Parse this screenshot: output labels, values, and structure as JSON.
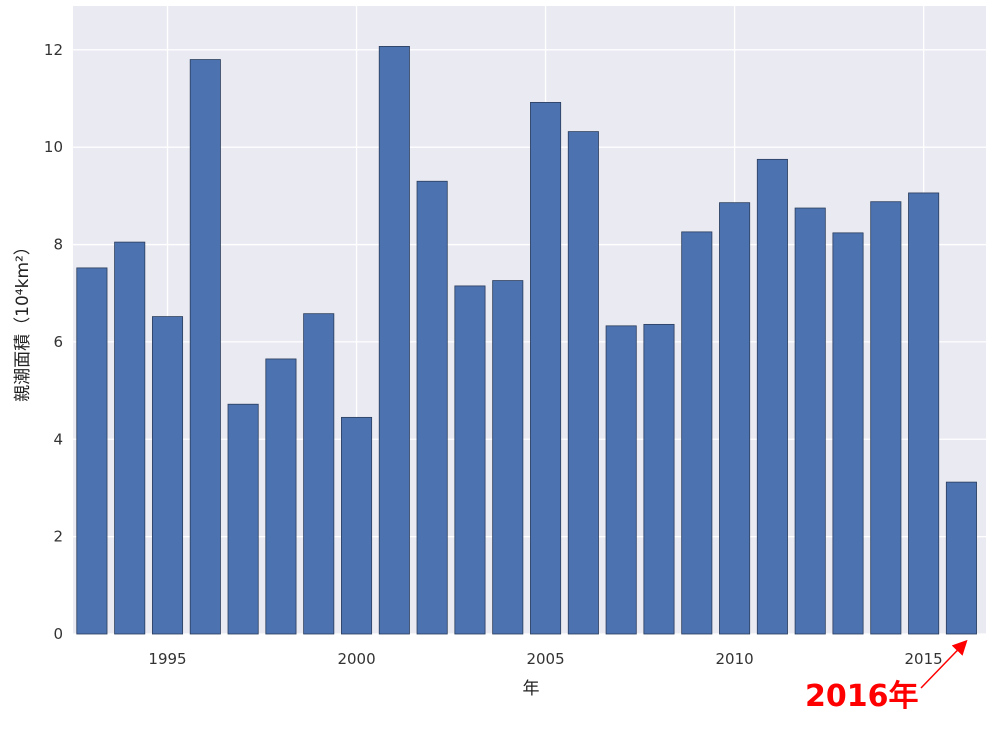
{
  "chart_data": {
    "type": "bar",
    "x": [
      1993,
      1994,
      1995,
      1996,
      1997,
      1998,
      1999,
      2000,
      2001,
      2002,
      2003,
      2004,
      2005,
      2006,
      2007,
      2008,
      2009,
      2010,
      2011,
      2012,
      2013,
      2014,
      2015,
      2016
    ],
    "values": [
      7.52,
      8.05,
      6.52,
      11.8,
      4.72,
      5.65,
      6.58,
      4.45,
      12.07,
      9.3,
      7.15,
      7.26,
      10.92,
      10.32,
      6.33,
      6.36,
      8.26,
      8.86,
      9.75,
      8.75,
      8.24,
      8.88,
      9.06,
      3.12
    ],
    "xlim": [
      1992.5,
      2016.65
    ],
    "ylim": [
      0,
      12.9
    ],
    "xticks": [
      1995,
      2000,
      2005,
      2010,
      2015
    ],
    "xtick_labels": [
      "1995",
      "2000",
      "2005",
      "2010",
      "2015"
    ],
    "yticks": [
      0,
      2,
      4,
      6,
      8,
      10,
      12
    ],
    "ytick_labels": [
      "0",
      "2",
      "4",
      "6",
      "8",
      "10",
      "12"
    ],
    "xlabel": "年",
    "ylabel": "親潮面積（10⁴km²）",
    "grid": true,
    "annotation": {
      "text": "2016年",
      "target": 2016,
      "color": "#ff0000"
    },
    "bar_color": "#4c72b0",
    "background_color": "#eaeaf2"
  }
}
